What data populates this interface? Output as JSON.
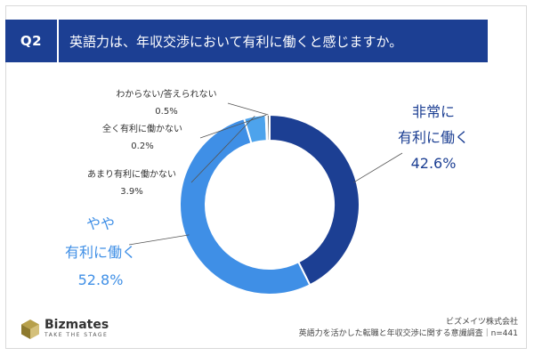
{
  "header": {
    "q_number": "Q2",
    "question": "英語力は、年収交渉において有利に働くと感じますか。"
  },
  "colors": {
    "header_bg": "#1c3f93",
    "very_advantageous": "#1c3f93",
    "somewhat_advantageous": "#3f8fe6",
    "not_very": "#4da3ec",
    "not_at_all": "#62b0ee",
    "dont_know": "#6e6e6e"
  },
  "chart_data": {
    "type": "pie",
    "donut": true,
    "series": [
      {
        "name": "非常に有利に働く",
        "label_lines": [
          "非常に",
          "有利に働く"
        ],
        "value": 42.6,
        "display": "42.6%",
        "color": "#1c3f93"
      },
      {
        "name": "やや有利に働く",
        "label_lines": [
          "やや",
          "有利に働く"
        ],
        "value": 52.8,
        "display": "52.8%",
        "color": "#3f8fe6"
      },
      {
        "name": "あまり有利に働かない",
        "label_lines": [
          "あまり有利に働かない"
        ],
        "value": 3.9,
        "display": "3.9%",
        "color": "#4da3ec"
      },
      {
        "name": "全く有利に働かない",
        "label_lines": [
          "全く有利に働かない"
        ],
        "value": 0.2,
        "display": "0.2%",
        "color": "#62b0ee"
      },
      {
        "name": "わからない/答えられない",
        "label_lines": [
          "わからない/答えられない"
        ],
        "value": 0.5,
        "display": "0.5%",
        "color": "#6e6e6e"
      }
    ]
  },
  "footer": {
    "brand": "Bizmates",
    "tagline": "TAKE THE STAGE",
    "company": "ビズメイツ株式会社",
    "survey": "英語力を活かした転職と年収交渉に関する意識調査｜n=441"
  }
}
